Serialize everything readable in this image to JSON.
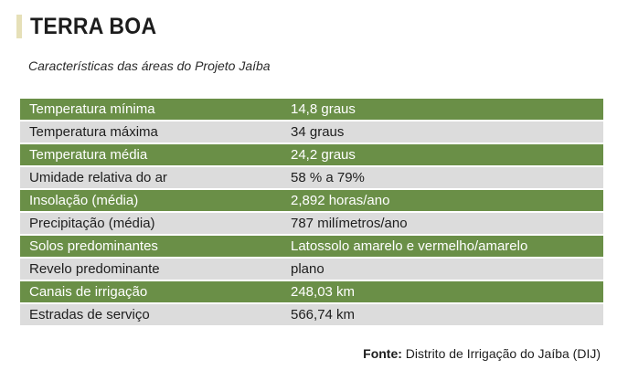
{
  "title": "TERRA BOA",
  "subtitle": "Características das áreas do Projeto Jaíba",
  "rows": [
    {
      "label": "Temperatura mínima",
      "value": "14,8 graus"
    },
    {
      "label": "Temperatura máxima",
      "value": "34 graus"
    },
    {
      "label": "Temperatura média",
      "value": "24,2 graus"
    },
    {
      "label": "Umidade relativa do ar",
      "value": "58 % a 79%"
    },
    {
      "label": "Insolação (média)",
      "value": "2,892 horas/ano"
    },
    {
      "label": "Precipitação (média)",
      "value": "787 milímetros/ano"
    },
    {
      "label": "Solos predominantes",
      "value": "Latossolo amarelo e vermelho/amarelo"
    },
    {
      "label": "Revelo predominante",
      "value": "plano"
    },
    {
      "label": "Canais de irrigação",
      "value": "248,03 km"
    },
    {
      "label": "Estradas de serviço",
      "value": "566,74 km"
    }
  ],
  "source": {
    "label": "Fonte:",
    "text": "Distrito de Irrigação do Jaíba (DIJ)"
  },
  "colors": {
    "green_row": "#6a8f47",
    "gray_row": "#dcdcdc",
    "title_bar": "#e6e0b8"
  }
}
